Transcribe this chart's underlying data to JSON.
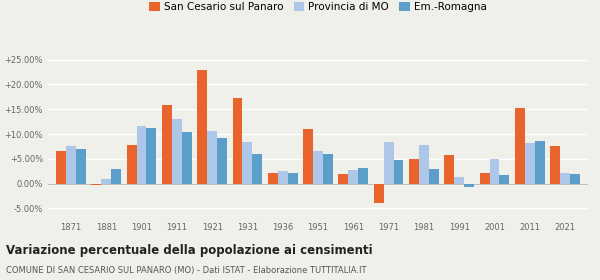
{
  "years": [
    1871,
    1881,
    1901,
    1911,
    1921,
    1931,
    1936,
    1951,
    1961,
    1971,
    1981,
    1991,
    2001,
    2011,
    2021
  ],
  "san_cesario": [
    6.5,
    -0.3,
    7.8,
    15.8,
    23.0,
    17.3,
    2.2,
    11.0,
    2.0,
    -3.8,
    5.0,
    5.8,
    2.2,
    15.3,
    7.5
  ],
  "provincia_mo": [
    7.5,
    1.0,
    11.7,
    13.0,
    10.7,
    8.5,
    2.5,
    6.5,
    2.7,
    8.5,
    7.7,
    1.3,
    4.9,
    8.3,
    2.1
  ],
  "em_romagna": [
    7.0,
    3.0,
    11.2,
    10.5,
    9.3,
    6.0,
    2.2,
    6.0,
    3.2,
    4.8,
    3.0,
    -0.7,
    1.8,
    8.6,
    2.0
  ],
  "color_san_cesario": "#e8642c",
  "color_provincia": "#aec6e8",
  "color_em_romagna": "#5b9ec9",
  "background_color": "#f0f0eb",
  "grid_color": "#ffffff",
  "ylim": [
    -7,
    28
  ],
  "yticks": [
    -5.0,
    0.0,
    5.0,
    10.0,
    15.0,
    20.0,
    25.0
  ],
  "title": "Variazione percentuale della popolazione ai censimenti",
  "subtitle": "COMUNE DI SAN CESARIO SUL PANARO (MO) - Dati ISTAT - Elaborazione TUTTITALIA.IT",
  "legend_labels": [
    "San Cesario sul Panaro",
    "Provincia di MO",
    "Em.-Romagna"
  ],
  "bar_width": 0.28
}
